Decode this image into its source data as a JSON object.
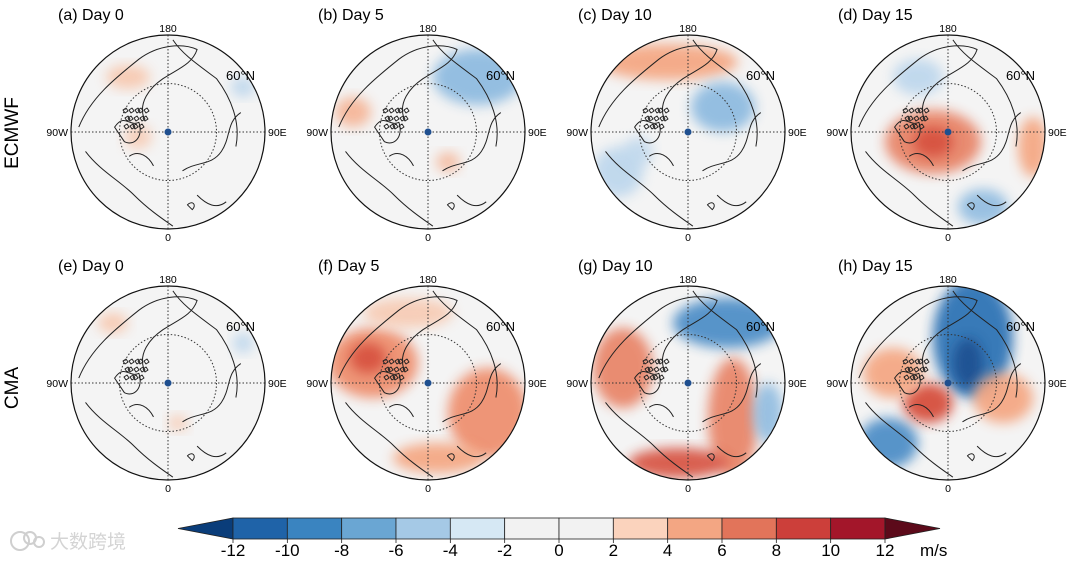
{
  "chart_data": {
    "type": "heatmap",
    "projection": "north-polar-stereographic",
    "rows": [
      {
        "label": "ECMWF",
        "panels": [
          {
            "tag": "(a) Day 0",
            "day": 0,
            "model": "ECMWF"
          },
          {
            "tag": "(b) Day 5",
            "day": 5,
            "model": "ECMWF"
          },
          {
            "tag": "(c) Day 10",
            "day": 10,
            "model": "ECMWF"
          },
          {
            "tag": "(d) Day 15",
            "day": 15,
            "model": "ECMWF"
          }
        ]
      },
      {
        "label": "CMA",
        "panels": [
          {
            "tag": "(e) Day 0",
            "day": 0,
            "model": "CMA"
          },
          {
            "tag": "(f) Day 5",
            "day": 5,
            "model": "CMA"
          },
          {
            "tag": "(g) Day 10",
            "day": 10,
            "model": "CMA"
          },
          {
            "tag": "(h) Day 15",
            "day": 15,
            "model": "CMA"
          }
        ]
      }
    ],
    "map_labels": {
      "top": "180",
      "bottom": "0",
      "left": "90W",
      "right": "90E",
      "lat_circle": "60°N"
    },
    "colorbar": {
      "ticks": [
        "-12",
        "-10",
        "-8",
        "-6",
        "-4",
        "-2",
        "0",
        "2",
        "4",
        "6",
        "8",
        "10",
        "12"
      ],
      "unit": "m/s",
      "colors": [
        "#0a3d7a",
        "#1f63a8",
        "#3a84c0",
        "#6aa6d3",
        "#a5c9e6",
        "#d6e8f4",
        "#f2f2f2",
        "#f2f2f2",
        "#fbd3bd",
        "#f3a683",
        "#e2745a",
        "#cc3f3a",
        "#a3162a",
        "#5c0a1a"
      ]
    }
  },
  "colors": {
    "blue": "#3a84c0",
    "red": "#d9634b",
    "land": "#222222",
    "bg": "#f4f4f4"
  },
  "watermark": {
    "text": "大数跨境"
  }
}
